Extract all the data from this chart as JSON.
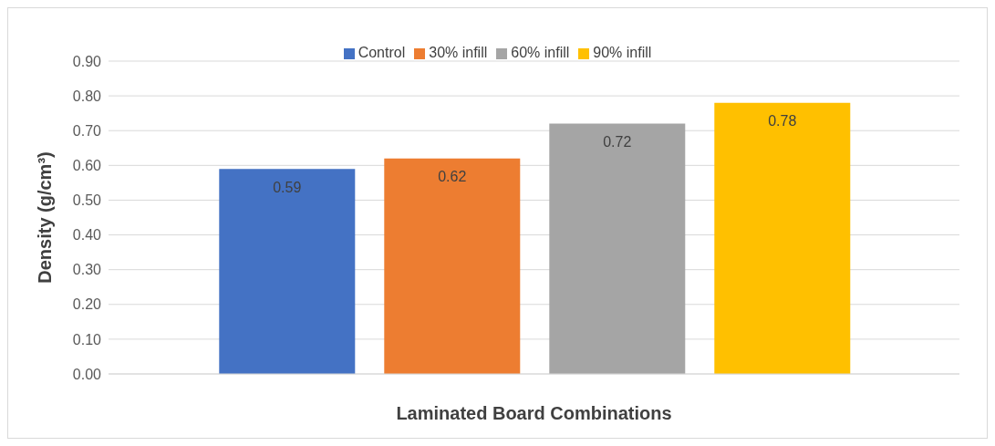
{
  "chart_data": {
    "type": "bar",
    "xlabel": "Laminated Board Combinations",
    "ylabel": "Density (g/cm³)",
    "categories": [
      null
    ],
    "series": [
      {
        "name": "Control",
        "color": "#4472c4",
        "values": [
          0.59
        ]
      },
      {
        "name": "30% infill",
        "color": "#ed7d31",
        "values": [
          0.62
        ]
      },
      {
        "name": "60% infill",
        "color": "#a5a5a5",
        "values": [
          0.72
        ]
      },
      {
        "name": "90% infill",
        "color": "#ffc000",
        "values": [
          0.78
        ]
      }
    ],
    "ylim": [
      0,
      0.9
    ],
    "yticks": [
      {
        "value": 0,
        "label": "0.00"
      },
      {
        "value": 0.1,
        "label": "0.10"
      },
      {
        "value": 0.2,
        "label": "0.20"
      },
      {
        "value": 0.3,
        "label": "0.30"
      },
      {
        "value": 0.4,
        "label": "0.40"
      },
      {
        "value": 0.5,
        "label": "0.50"
      },
      {
        "value": 0.6,
        "label": "0.60"
      },
      {
        "value": 0.7,
        "label": "0.70"
      },
      {
        "value": 0.8,
        "label": "0.80"
      },
      {
        "value": 0.9,
        "label": "0.90"
      }
    ],
    "grid": "y",
    "legend": "top",
    "data_labels": true
  }
}
